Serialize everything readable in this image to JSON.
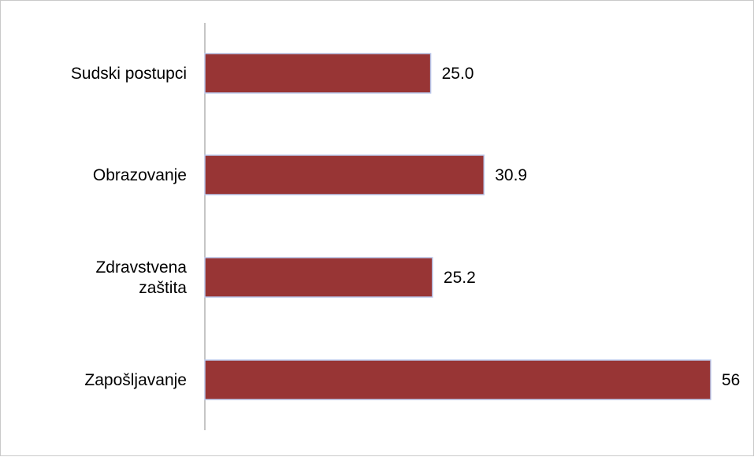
{
  "chart_data": {
    "type": "bar",
    "orientation": "horizontal",
    "categories": [
      "Sudski postupci",
      "Obrazovanje",
      "Zdravstvena zaštita",
      "Zapošljavanje"
    ],
    "category_lines": [
      [
        "Sudski postupci"
      ],
      [
        "Obrazovanje"
      ],
      [
        "Zdravstvena",
        "zaštita"
      ],
      [
        "Zapošljavanje"
      ]
    ],
    "values": [
      25.0,
      30.9,
      25.2,
      56
    ],
    "value_labels": [
      "25.0",
      "30.9",
      "25.2",
      "56"
    ],
    "title": "",
    "xlabel": "",
    "ylabel": "",
    "xlim": [
      0,
      56
    ],
    "grid": false,
    "legend": "none",
    "colors": {
      "bar_fill": "#983535",
      "bar_stroke": "#b9c6ea",
      "axis": "#8c8c8c",
      "text": "#000000"
    }
  }
}
